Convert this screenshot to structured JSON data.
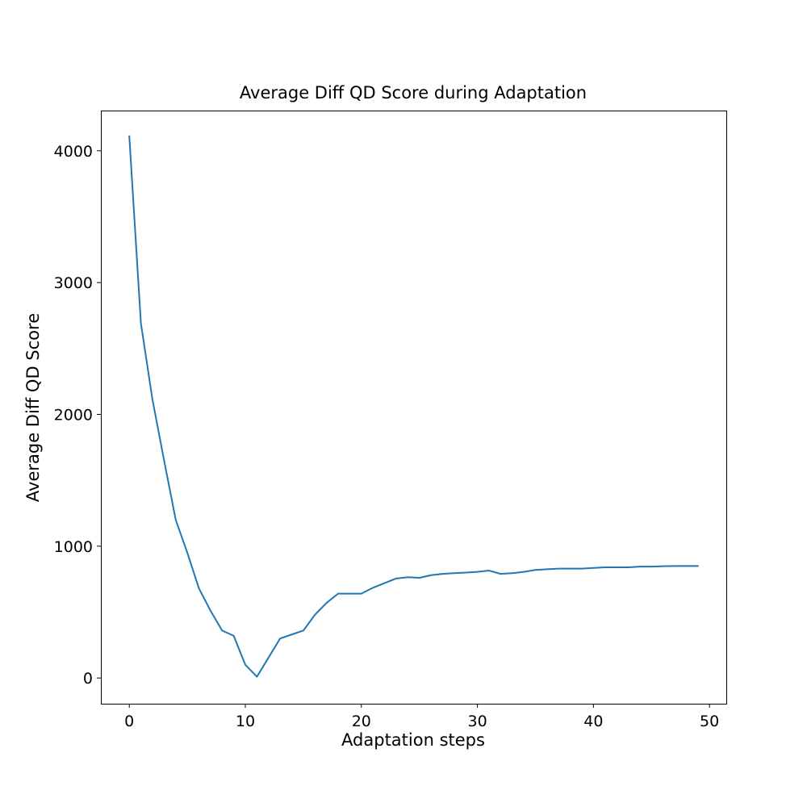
{
  "chart_data": {
    "type": "line",
    "title": "Average Diff QD Score during Adaptation",
    "xlabel": "Adaptation steps",
    "ylabel": "Average Diff QD Score",
    "xlim": [
      -2.45,
      51.45
    ],
    "ylim": [
      -195,
      4305
    ],
    "xticks": [
      0,
      10,
      20,
      30,
      40,
      50
    ],
    "xtick_labels": [
      "0",
      "10",
      "20",
      "30",
      "40",
      "50"
    ],
    "yticks": [
      0,
      1000,
      2000,
      3000,
      4000
    ],
    "ytick_labels": [
      "0",
      "1000",
      "2000",
      "3000",
      "4000"
    ],
    "grid": false,
    "legend": "none",
    "series_color": "#1f77b4",
    "x": [
      0,
      1,
      2,
      3,
      4,
      5,
      6,
      7,
      8,
      9,
      10,
      11,
      12,
      13,
      14,
      15,
      16,
      17,
      18,
      19,
      20,
      21,
      22,
      23,
      24,
      25,
      26,
      27,
      28,
      29,
      30,
      31,
      32,
      33,
      34,
      35,
      36,
      37,
      38,
      39,
      40,
      41,
      42,
      43,
      44,
      45,
      46,
      47,
      48,
      49
    ],
    "y": [
      4110,
      2690,
      2110,
      1650,
      1200,
      950,
      680,
      510,
      360,
      320,
      100,
      10,
      155,
      300,
      330,
      360,
      480,
      570,
      640,
      640,
      640,
      685,
      720,
      755,
      765,
      760,
      780,
      790,
      795,
      800,
      805,
      815,
      790,
      795,
      805,
      820,
      825,
      830,
      830,
      830,
      835,
      840,
      840,
      840,
      845,
      845,
      848,
      850,
      850,
      850
    ]
  }
}
